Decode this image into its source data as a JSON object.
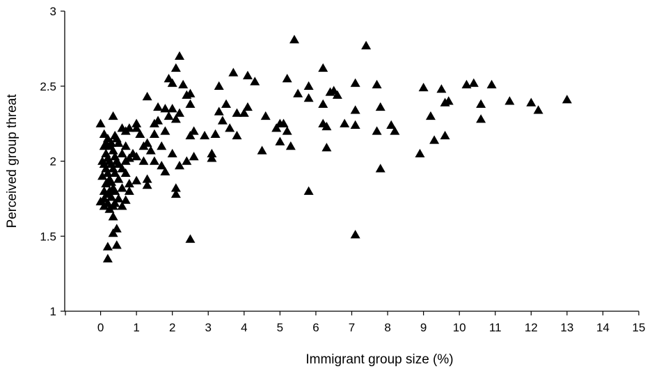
{
  "chart_data": {
    "type": "scatter",
    "title": "",
    "xlabel": "Immigrant group size (%)",
    "ylabel": "Perceived group threat",
    "xlim": [
      -1,
      15
    ],
    "ylim": [
      1,
      3
    ],
    "x_ticks": [
      0,
      1,
      2,
      3,
      4,
      5,
      6,
      7,
      8,
      9,
      10,
      11,
      12,
      13,
      14,
      15
    ],
    "y_ticks": [
      1,
      1.5,
      2,
      2.5,
      3
    ],
    "x_tick_labels": [
      "0",
      "1",
      "2",
      "3",
      "4",
      "5",
      "6",
      "7",
      "8",
      "9",
      "10",
      "11",
      "12",
      "13",
      "14",
      "15"
    ],
    "y_tick_labels": [
      "1",
      "1.5",
      "2",
      "2.5",
      "3"
    ],
    "marker": "triangle",
    "marker_color": "#000000",
    "grid": false,
    "legend": "none",
    "series": [
      {
        "points": [
          [
            0.0,
            2.25
          ],
          [
            0.0,
            1.73
          ],
          [
            0.05,
            2.0
          ],
          [
            0.05,
            1.9
          ],
          [
            0.1,
            2.18
          ],
          [
            0.1,
            2.1
          ],
          [
            0.1,
            1.98
          ],
          [
            0.1,
            1.8
          ],
          [
            0.1,
            1.75
          ],
          [
            0.1,
            1.7
          ],
          [
            0.15,
            2.12
          ],
          [
            0.15,
            2.05
          ],
          [
            0.15,
            1.95
          ],
          [
            0.15,
            1.85
          ],
          [
            0.2,
            2.15
          ],
          [
            0.2,
            2.02
          ],
          [
            0.2,
            1.92
          ],
          [
            0.2,
            1.78
          ],
          [
            0.2,
            1.72
          ],
          [
            0.2,
            1.43
          ],
          [
            0.2,
            1.35
          ],
          [
            0.25,
            2.1
          ],
          [
            0.25,
            2.0
          ],
          [
            0.25,
            1.88
          ],
          [
            0.25,
            1.8
          ],
          [
            0.25,
            1.68
          ],
          [
            0.3,
            2.12
          ],
          [
            0.3,
            1.98
          ],
          [
            0.3,
            1.86
          ],
          [
            0.3,
            1.76
          ],
          [
            0.35,
            2.3
          ],
          [
            0.35,
            2.07
          ],
          [
            0.35,
            1.95
          ],
          [
            0.35,
            1.82
          ],
          [
            0.35,
            1.7
          ],
          [
            0.35,
            1.63
          ],
          [
            0.35,
            1.52
          ],
          [
            0.4,
            2.17
          ],
          [
            0.4,
            2.03
          ],
          [
            0.4,
            1.92
          ],
          [
            0.4,
            1.8
          ],
          [
            0.4,
            1.72
          ],
          [
            0.45,
            2.15
          ],
          [
            0.45,
            2.0
          ],
          [
            0.45,
            1.55
          ],
          [
            0.45,
            1.44
          ],
          [
            0.5,
            2.12
          ],
          [
            0.5,
            1.98
          ],
          [
            0.5,
            1.88
          ],
          [
            0.5,
            1.75
          ],
          [
            0.6,
            2.22
          ],
          [
            0.6,
            2.05
          ],
          [
            0.6,
            1.95
          ],
          [
            0.6,
            1.82
          ],
          [
            0.6,
            1.7
          ],
          [
            0.7,
            2.2
          ],
          [
            0.7,
            2.1
          ],
          [
            0.7,
            2.0
          ],
          [
            0.7,
            1.92
          ],
          [
            0.7,
            1.74
          ],
          [
            0.8,
            2.22
          ],
          [
            0.8,
            2.02
          ],
          [
            0.8,
            1.85
          ],
          [
            0.8,
            1.8
          ],
          [
            0.9,
            2.05
          ],
          [
            1.0,
            2.25
          ],
          [
            1.0,
            2.22
          ],
          [
            1.0,
            2.03
          ],
          [
            1.0,
            1.87
          ],
          [
            1.1,
            2.18
          ],
          [
            1.2,
            2.1
          ],
          [
            1.2,
            2.0
          ],
          [
            1.3,
            2.43
          ],
          [
            1.3,
            2.12
          ],
          [
            1.3,
            1.88
          ],
          [
            1.3,
            1.84
          ],
          [
            1.4,
            2.07
          ],
          [
            1.5,
            2.25
          ],
          [
            1.5,
            2.18
          ],
          [
            1.5,
            2.0
          ],
          [
            1.6,
            2.36
          ],
          [
            1.6,
            2.27
          ],
          [
            1.7,
            2.1
          ],
          [
            1.7,
            1.97
          ],
          [
            1.8,
            2.35
          ],
          [
            1.8,
            2.2
          ],
          [
            1.8,
            1.93
          ],
          [
            1.9,
            2.55
          ],
          [
            1.9,
            2.3
          ],
          [
            2.0,
            2.52
          ],
          [
            2.0,
            2.35
          ],
          [
            2.0,
            2.05
          ],
          [
            2.1,
            2.62
          ],
          [
            2.1,
            2.28
          ],
          [
            2.1,
            1.82
          ],
          [
            2.1,
            1.78
          ],
          [
            2.2,
            2.7
          ],
          [
            2.2,
            2.32
          ],
          [
            2.2,
            1.97
          ],
          [
            2.3,
            2.51
          ],
          [
            2.4,
            2.44
          ],
          [
            2.4,
            2.0
          ],
          [
            2.5,
            2.45
          ],
          [
            2.5,
            2.38
          ],
          [
            2.5,
            2.17
          ],
          [
            2.5,
            1.48
          ],
          [
            2.6,
            2.2
          ],
          [
            2.6,
            2.03
          ],
          [
            2.9,
            2.17
          ],
          [
            3.1,
            2.05
          ],
          [
            3.1,
            2.02
          ],
          [
            3.2,
            2.18
          ],
          [
            3.3,
            2.5
          ],
          [
            3.3,
            2.33
          ],
          [
            3.4,
            2.27
          ],
          [
            3.5,
            2.38
          ],
          [
            3.6,
            2.22
          ],
          [
            3.7,
            2.59
          ],
          [
            3.8,
            2.32
          ],
          [
            3.8,
            2.17
          ],
          [
            4.0,
            2.32
          ],
          [
            4.1,
            2.57
          ],
          [
            4.1,
            2.36
          ],
          [
            4.3,
            2.53
          ],
          [
            4.5,
            2.07
          ],
          [
            4.6,
            2.3
          ],
          [
            4.9,
            2.22
          ],
          [
            5.0,
            2.25
          ],
          [
            5.0,
            2.13
          ],
          [
            5.1,
            2.25
          ],
          [
            5.2,
            2.55
          ],
          [
            5.2,
            2.2
          ],
          [
            5.3,
            2.1
          ],
          [
            5.4,
            2.81
          ],
          [
            5.5,
            2.45
          ],
          [
            5.8,
            2.5
          ],
          [
            5.8,
            2.42
          ],
          [
            5.8,
            1.8
          ],
          [
            6.2,
            2.62
          ],
          [
            6.2,
            2.38
          ],
          [
            6.2,
            2.25
          ],
          [
            6.3,
            2.23
          ],
          [
            6.3,
            2.09
          ],
          [
            6.4,
            2.46
          ],
          [
            6.5,
            2.47
          ],
          [
            6.6,
            2.44
          ],
          [
            6.8,
            2.25
          ],
          [
            7.1,
            2.52
          ],
          [
            7.1,
            2.34
          ],
          [
            7.1,
            2.24
          ],
          [
            7.1,
            1.51
          ],
          [
            7.4,
            2.77
          ],
          [
            7.7,
            2.51
          ],
          [
            7.7,
            2.2
          ],
          [
            7.8,
            2.36
          ],
          [
            7.8,
            1.95
          ],
          [
            8.1,
            2.24
          ],
          [
            8.2,
            2.2
          ],
          [
            8.9,
            2.05
          ],
          [
            9.0,
            2.49
          ],
          [
            9.2,
            2.3
          ],
          [
            9.3,
            2.14
          ],
          [
            9.5,
            2.48
          ],
          [
            9.6,
            2.39
          ],
          [
            9.6,
            2.17
          ],
          [
            9.7,
            2.4
          ],
          [
            10.2,
            2.51
          ],
          [
            10.4,
            2.52
          ],
          [
            10.6,
            2.38
          ],
          [
            10.6,
            2.28
          ],
          [
            10.9,
            2.51
          ],
          [
            11.4,
            2.4
          ],
          [
            12.0,
            2.39
          ],
          [
            12.2,
            2.34
          ],
          [
            13.0,
            2.41
          ]
        ]
      }
    ]
  }
}
